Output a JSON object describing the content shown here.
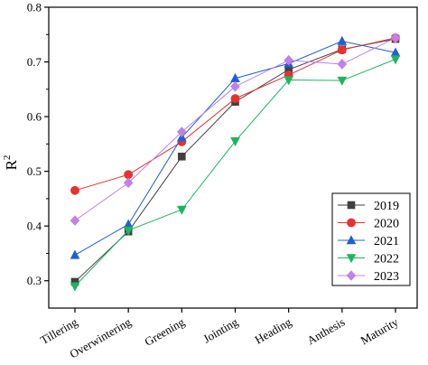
{
  "chart_data": {
    "type": "line",
    "xlabel": "",
    "ylabel": "R",
    "ylabel_sup": "2",
    "ylim": [
      0.25,
      0.8
    ],
    "yticks": [
      "0.3",
      "0.4",
      "0.5",
      "0.6",
      "0.7",
      "0.8"
    ],
    "grid": false,
    "legend_position": "bottom-right",
    "categories": [
      "Tillering",
      "Overwintering",
      "Greening",
      "Jointing",
      "Heading",
      "Anthesis",
      "Maturity"
    ],
    "series": [
      {
        "name": "2019",
        "color": "#404040",
        "marker": "square",
        "values": [
          0.298,
          0.39,
          0.527,
          0.627,
          0.686,
          0.723,
          0.742
        ]
      },
      {
        "name": "2020",
        "color": "#e8312f",
        "marker": "circle",
        "values": [
          0.465,
          0.494,
          0.554,
          0.633,
          0.676,
          0.722,
          0.744
        ]
      },
      {
        "name": "2021",
        "color": "#1f5fd4",
        "marker": "triangle-up",
        "values": [
          0.347,
          0.403,
          0.562,
          0.67,
          0.697,
          0.738,
          0.717
        ]
      },
      {
        "name": "2022",
        "color": "#1fb45f",
        "marker": "triangle-down",
        "values": [
          0.29,
          0.392,
          0.43,
          0.555,
          0.667,
          0.666,
          0.705
        ]
      },
      {
        "name": "2023",
        "color": "#c080e8",
        "marker": "diamond",
        "values": [
          0.41,
          0.479,
          0.572,
          0.655,
          0.703,
          0.696,
          0.744
        ]
      }
    ]
  }
}
